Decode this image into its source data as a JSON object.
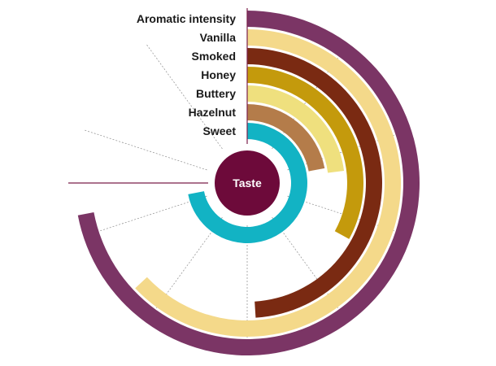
{
  "chart_data": {
    "type": "radial_bar",
    "center_label": "Taste",
    "max_value": 10,
    "grid_divisions": 10,
    "categories": [
      "Aromatic intensity",
      "Vanilla",
      "Smoked",
      "Honey",
      "Buttery",
      "Hazelnut",
      "Sweet"
    ],
    "values": [
      7.2,
      6.3,
      4.9,
      3.3,
      2.3,
      2.2,
      7.2
    ],
    "colors": [
      "#7b3565",
      "#f4d98a",
      "#7a2a12",
      "#c49a0c",
      "#efe07e",
      "#b47c4a",
      "#12b3c4"
    ],
    "center_color": "#6d0a3a",
    "axis_color": "#7b1f4b"
  }
}
